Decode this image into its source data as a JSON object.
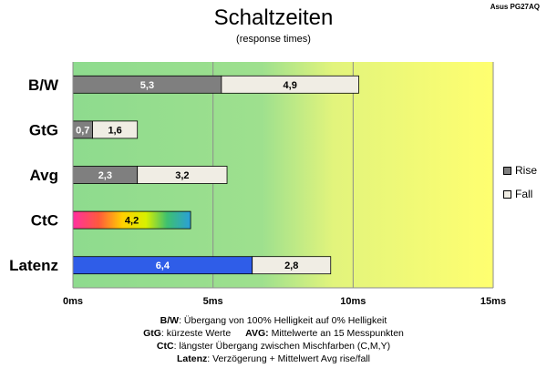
{
  "title": "Schaltzeiten",
  "subtitle": "(response times)",
  "model": "Asus PG27AQ",
  "colors": {
    "rise": "#7f7f7f",
    "fall": "#f0ede4",
    "plot_left": "#8edb8e",
    "plot_right": "#ffff70"
  },
  "legend": [
    {
      "label": "Rise",
      "color": "#7f7f7f"
    },
    {
      "label": "Fall",
      "color": "#f0ede4"
    }
  ],
  "footnotes": [
    {
      "key": "B/W",
      "text": ":  Übergang von 100% Helligkeit auf 0% Helligkeit"
    },
    {
      "key": "GtG",
      "text": ": kürzeste  Werte",
      "key2": "AVG:",
      "text2": " Mittelwerte  an 15 Messpunkten"
    },
    {
      "key": "CtC",
      "text": ": längster Übergang zwischen Mischfarben (C,M,Y)"
    },
    {
      "key": "Latenz",
      "text": ": Verzögerung  + Mittelwert  Avg rise/fall"
    }
  ],
  "chart_data": {
    "type": "bar",
    "orientation": "horizontal",
    "stacked": true,
    "categories": [
      "B/W",
      "GtG",
      "Avg",
      "CtC",
      "Latenz"
    ],
    "series": [
      {
        "name": "Rise",
        "values": [
          5.3,
          0.7,
          2.3,
          4.2,
          6.4
        ],
        "labels": [
          "5,3",
          "0,7",
          "2,3",
          "4,2",
          "6,4"
        ]
      },
      {
        "name": "Fall",
        "values": [
          4.9,
          1.6,
          3.2,
          null,
          2.8
        ],
        "labels": [
          "4,9",
          "1,6",
          "3,2",
          "",
          "2,8"
        ]
      }
    ],
    "xlim": [
      0,
      15
    ],
    "xticks": [
      0,
      5,
      10,
      15
    ],
    "xtick_labels": [
      "0ms",
      "5ms",
      "10ms",
      "15ms"
    ],
    "grid": true,
    "legend_position": "right"
  }
}
